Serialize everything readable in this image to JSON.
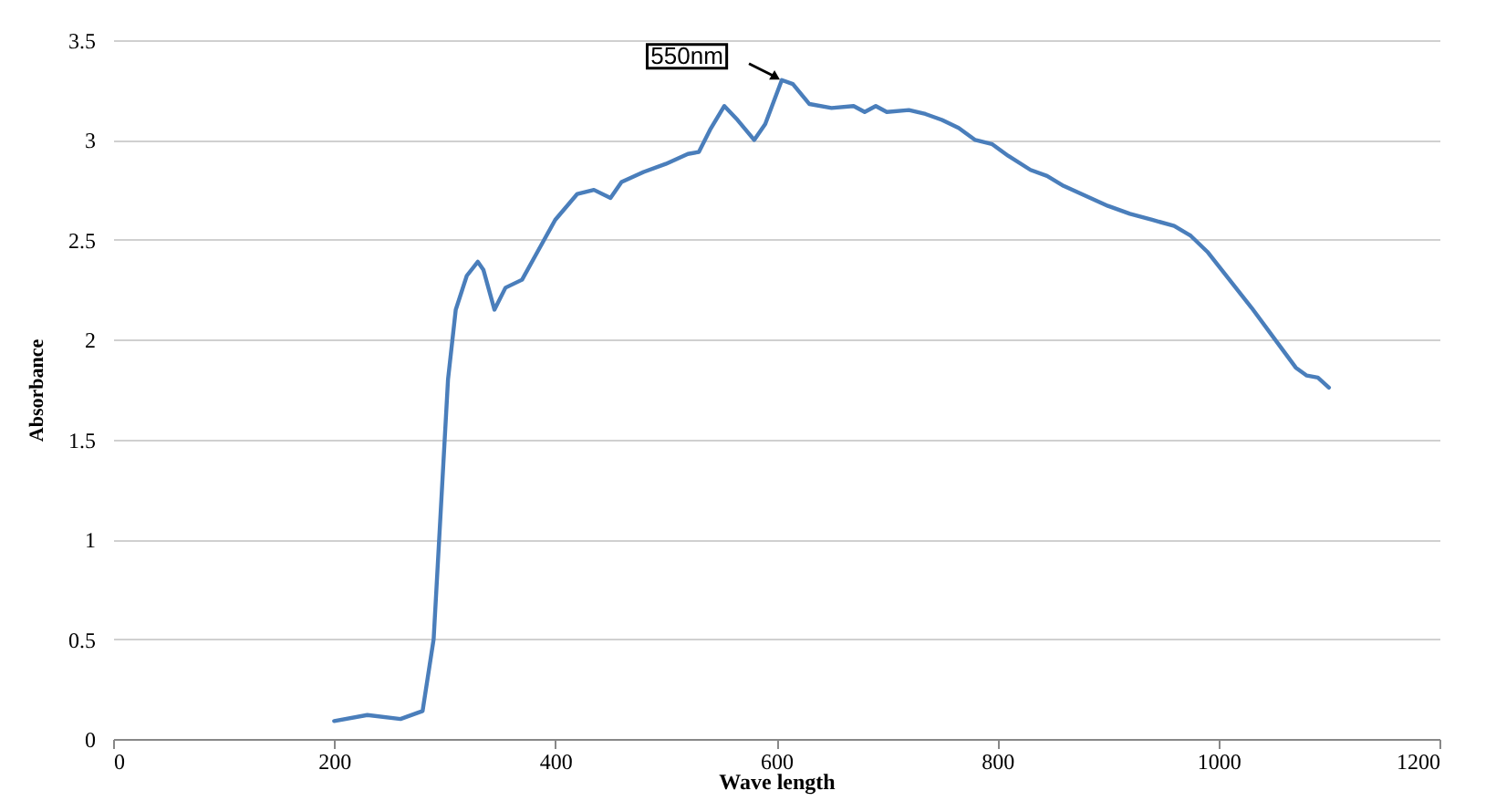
{
  "chart_data": {
    "type": "line",
    "xlabel": "Wave length",
    "ylabel": "Absorbance",
    "x": [
      200,
      230,
      260,
      280,
      290,
      297,
      303,
      310,
      320,
      330,
      335,
      345,
      355,
      370,
      385,
      400,
      420,
      435,
      450,
      460,
      480,
      500,
      520,
      530,
      540,
      553,
      565,
      580,
      590,
      605,
      615,
      630,
      650,
      670,
      680,
      690,
      700,
      720,
      735,
      750,
      765,
      780,
      795,
      810,
      830,
      845,
      860,
      880,
      900,
      920,
      940,
      960,
      975,
      990,
      1010,
      1030,
      1050,
      1070,
      1080,
      1090,
      1100
    ],
    "series": [
      {
        "color": "#4a7ebb",
        "values": [
          0.09,
          0.12,
          0.1,
          0.14,
          0.5,
          1.2,
          1.8,
          2.15,
          2.32,
          2.39,
          2.35,
          2.15,
          2.26,
          2.3,
          2.45,
          2.6,
          2.73,
          2.75,
          2.71,
          2.79,
          2.84,
          2.88,
          2.93,
          2.94,
          3.05,
          3.17,
          3.1,
          3.0,
          3.08,
          3.3,
          3.28,
          3.18,
          3.16,
          3.17,
          3.14,
          3.17,
          3.14,
          3.15,
          3.13,
          3.1,
          3.06,
          3.0,
          2.98,
          2.92,
          2.85,
          2.82,
          2.77,
          2.72,
          2.67,
          2.63,
          2.6,
          2.57,
          2.52,
          2.44,
          2.3,
          2.16,
          2.01,
          1.86,
          1.82,
          1.81,
          1.76
        ]
      }
    ],
    "annotations": [
      {
        "text": "550nm",
        "x": 605,
        "y": 3.3
      }
    ],
    "xlim": [
      0,
      1200
    ],
    "xticks": [
      0,
      200,
      400,
      600,
      800,
      1000,
      1200
    ],
    "ylim": [
      0,
      3.5
    ],
    "yticks": [
      0,
      0.5,
      1,
      1.5,
      2,
      2.5,
      3,
      3.5
    ],
    "grid": "y",
    "legend": false,
    "marker": "none",
    "line_style": "solid"
  }
}
